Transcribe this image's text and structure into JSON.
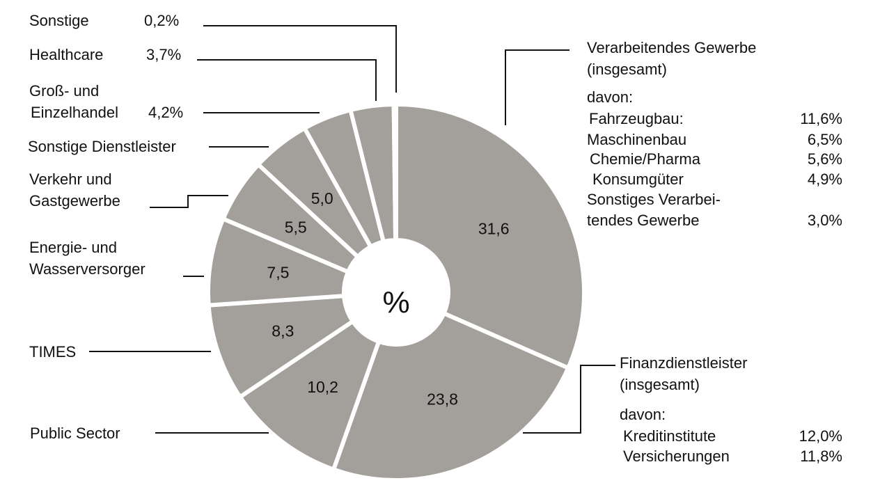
{
  "chart_data": {
    "type": "pie",
    "variant": "donut",
    "center_label": "%",
    "slice_color": "#a39f9a",
    "separator_color": "#ffffff",
    "slices": [
      {
        "label": "Verarbeitendes Gewerbe (insgesamt)",
        "value": 31.6,
        "value_label": "31,6"
      },
      {
        "label": "Finanzdienstleister (insgesamt)",
        "value": 23.8,
        "value_label": "23,8"
      },
      {
        "label": "Public Sector",
        "value": 10.2,
        "value_label": "10,2"
      },
      {
        "label": "TIMES",
        "value": 8.3,
        "value_label": "8,3"
      },
      {
        "label": "Energie- und Wasserversorger",
        "value": 7.5,
        "value_label": "7,5"
      },
      {
        "label": "Verkehr und Gastgewerbe",
        "value": 5.5,
        "value_label": "5,5"
      },
      {
        "label": "Sonstige Dienstleister",
        "value": 5.0,
        "value_label": "5,0"
      },
      {
        "label": "Groß- und Einzelhandel",
        "value": 4.2,
        "value_label": ""
      },
      {
        "label": "Healthcare",
        "value": 3.7,
        "value_label": ""
      },
      {
        "label": "Sonstige",
        "value": 0.2,
        "value_label": ""
      }
    ],
    "annotations": {
      "sonstige": {
        "label": "Sonstige",
        "value": "0,2%"
      },
      "healthcare": {
        "label": "Healthcare",
        "value": "3,7%"
      },
      "handel": {
        "line1": "Groß- und",
        "line2": "Einzelhandel",
        "value": "4,2%"
      },
      "dienstleister": {
        "label": "Sonstige Dienstleister"
      },
      "verkehr": {
        "line1": "Verkehr und",
        "line2": "Gastgewerbe"
      },
      "energie": {
        "line1": "Energie- und",
        "line2": "Wasserversorger"
      },
      "times": {
        "label": "TIMES"
      },
      "public": {
        "label": "Public Sector"
      },
      "verarbeitendes": {
        "line1": "Verarbeitendes Gewerbe",
        "line2": "(insgesamt)",
        "davon": "davon:",
        "items": [
          {
            "label": "Fahrzeugbau:",
            "value": "11,6%"
          },
          {
            "label": "Maschinenbau",
            "value": "6,5%"
          },
          {
            "label": "Chemie/Pharma",
            "value": "5,6%"
          },
          {
            "label": "Konsumgüter",
            "value": "4,9%"
          }
        ],
        "last_line1": "Sonstiges Verarbei-",
        "last_line2": "tendes Gewerbe",
        "last_value": "3,0%"
      },
      "finanz": {
        "line1": "Finanzdienstleister",
        "line2": "(insgesamt)",
        "davon": "davon:",
        "items": [
          {
            "label": "Kreditinstitute",
            "value": "12,0%"
          },
          {
            "label": "Versicherungen",
            "value": "11,8%"
          }
        ]
      }
    }
  }
}
